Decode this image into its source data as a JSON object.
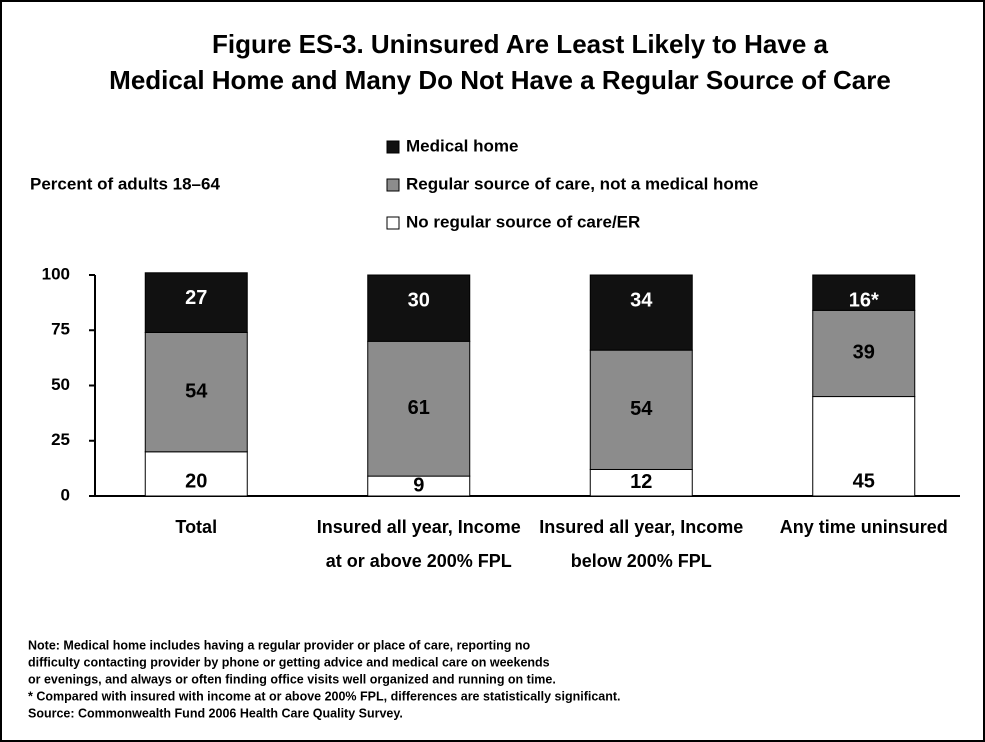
{
  "chart_data": {
    "type": "stacked_bar",
    "title": [
      "Figure ES-3. Uninsured Are Least Likely to Have a",
      "Medical Home and Many Do Not Have a Regular Source of Care"
    ],
    "ylabel": "Percent of adults 18–64",
    "categories": [
      "Total",
      "Insured all year, Income at or above 200% FPL",
      "Insured all year, Income below 200% FPL",
      "Any time uninsured"
    ],
    "series": [
      {
        "name": "No regular source of care/ER",
        "color": "#ffffff",
        "values": [
          20,
          9,
          12,
          45
        ]
      },
      {
        "name": "Regular source of care, not a medical home",
        "color": "#8c8c8c",
        "values": [
          54,
          61,
          54,
          39
        ]
      },
      {
        "name": "Medical home",
        "color": "#111111",
        "values": [
          27,
          30,
          34,
          16
        ],
        "value_labels": [
          "27",
          "30",
          "34",
          "16*"
        ]
      }
    ],
    "ylim": [
      0,
      100
    ],
    "yticks": [
      0,
      25,
      50,
      75,
      100
    ],
    "notes": [
      "Note: Medical home includes having a regular provider or place of care, reporting no",
      "difficulty contacting provider by phone or getting advice and medical care on weekends",
      "or evenings, and always or often finding office visits well organized and running on time.",
      "* Compared with insured with income at or above 200% FPL, differences are statistically significant.",
      "Source: Commonwealth Fund 2006 Health Care Quality Survey."
    ]
  }
}
